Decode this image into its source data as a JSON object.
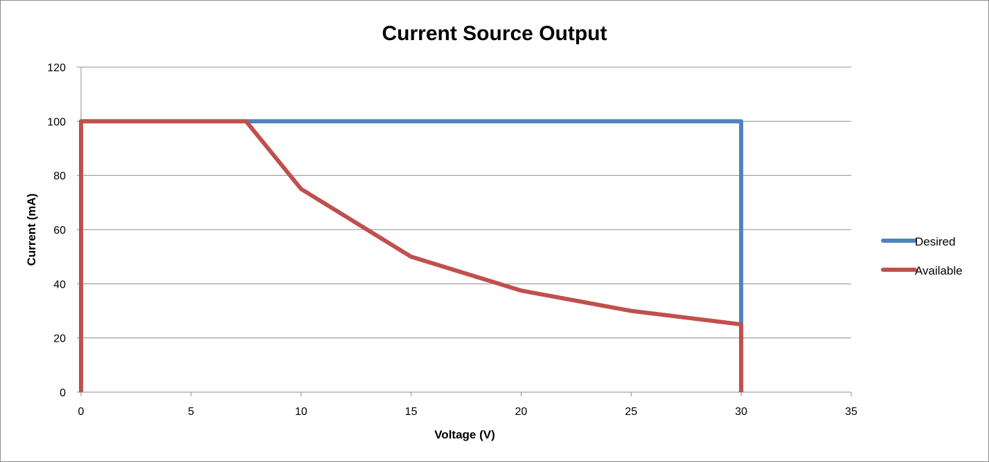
{
  "chart_data": {
    "type": "line",
    "title": "Current Source Output",
    "xlabel": "Voltage (V)",
    "ylabel": "Current (mA)",
    "xlim": [
      0,
      35
    ],
    "ylim": [
      0,
      120
    ],
    "x_ticks": [
      0,
      5,
      10,
      15,
      20,
      25,
      30,
      35
    ],
    "y_ticks": [
      0,
      20,
      40,
      60,
      80,
      100,
      120
    ],
    "grid": "horizontal",
    "legend_position": "right",
    "series": [
      {
        "name": "Desired",
        "color": "#4f81bd",
        "points": [
          [
            0,
            0
          ],
          [
            0,
            100
          ],
          [
            30,
            100
          ],
          [
            30,
            0
          ]
        ]
      },
      {
        "name": "Available",
        "color": "#c0504d",
        "points": [
          [
            0,
            0
          ],
          [
            0,
            100
          ],
          [
            7.5,
            100
          ],
          [
            10,
            75
          ],
          [
            15,
            50
          ],
          [
            20,
            37.5
          ],
          [
            25,
            30
          ],
          [
            30,
            25
          ],
          [
            30,
            0
          ]
        ]
      }
    ]
  }
}
